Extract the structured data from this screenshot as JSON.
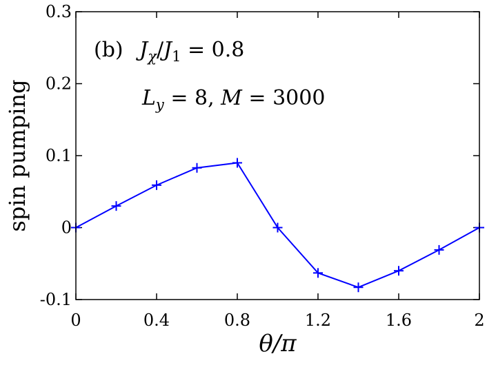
{
  "chart_data": {
    "type": "line",
    "xlabel": "θ/π",
    "ylabel": "spin pumping",
    "xlim": [
      0,
      2
    ],
    "ylim": [
      -0.1,
      0.3
    ],
    "xticks": [
      0,
      0.4,
      0.8,
      1.2,
      1.6,
      2
    ],
    "xtick_labels": [
      "0",
      "0.4",
      "0.8",
      "1.2",
      "1.6",
      "2"
    ],
    "yticks": [
      -0.1,
      0,
      0.1,
      0.2,
      0.3
    ],
    "ytick_labels": [
      "-0.1",
      "0",
      "0.1",
      "0.2",
      "0.3"
    ],
    "grid": false,
    "series": [
      {
        "color": "#0000ff",
        "marker": "plus",
        "x": [
          0,
          0.2,
          0.4,
          0.6,
          0.8,
          1.0,
          1.2,
          1.4,
          1.6,
          1.8,
          2.0
        ],
        "y": [
          0,
          0.03,
          0.059,
          0.083,
          0.09,
          0,
          -0.063,
          -0.083,
          -0.06,
          -0.031,
          0
        ]
      }
    ],
    "annotations": {
      "panel_label": "(b)",
      "line1_lhs_num": "J",
      "line1_lhs_num_sub": "χ",
      "line1_lhs_den": "J",
      "line1_lhs_den_sub": "1",
      "line1_rhs": " = 0.8",
      "line2_a": "L",
      "line2_a_sub": "y",
      "line2_a_val": " = 8, ",
      "line2_b": "M",
      "line2_b_val": " = 3000"
    }
  }
}
